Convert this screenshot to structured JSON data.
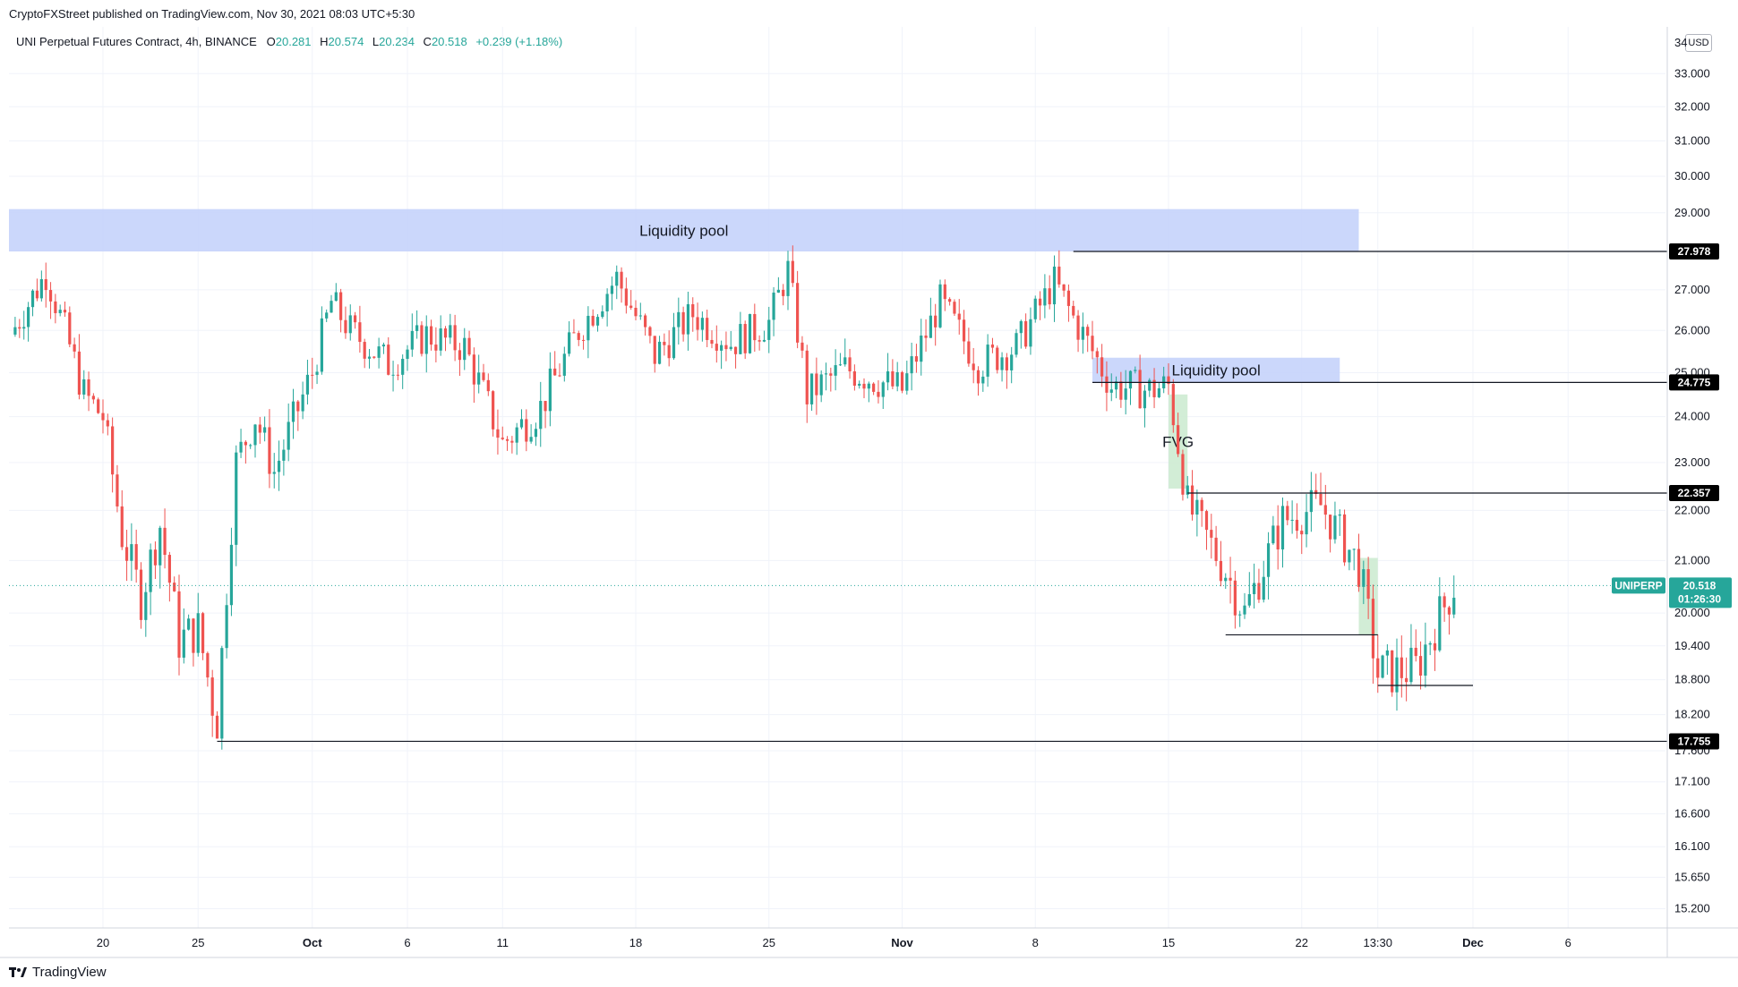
{
  "header": {
    "published": "CryptoFXStreet published on TradingView.com, Nov 30, 2021 08:03 UTC+5:30"
  },
  "legend": {
    "symbol": "UNI Perpetual Futures Contract, 4h, BINANCE",
    "o_label": "O",
    "o": "20.281",
    "h_label": "H",
    "h": "20.574",
    "l_label": "L",
    "l": "20.234",
    "c_label": "C",
    "c": "20.518",
    "change": "+0.239 (+1.18%)"
  },
  "currency": "USD",
  "footer": {
    "brand": "TradingView"
  },
  "colors": {
    "up": "#26a69a",
    "down": "#ef5350",
    "zone_blue": "#c5d3fb",
    "zone_green": "#cdebd1",
    "tag": "#000000"
  },
  "chart_data": {
    "type": "candlestick",
    "symbol": "UNIPERP",
    "timeframe": "4h",
    "y_axis": {
      "scale": "log",
      "ticks": [
        "33.000",
        "32.000",
        "31.000",
        "30.000",
        "29.000",
        "28.000",
        "27.000",
        "26.000",
        "25.000",
        "24.000",
        "23.000",
        "22.000",
        "21.000",
        "20.000",
        "19.400",
        "18.800",
        "18.200",
        "17.600",
        "17.100",
        "16.600",
        "16.100",
        "15.650",
        "15.200"
      ],
      "top_cut_label": "34"
    },
    "x_axis": {
      "ticks": [
        "20",
        "25",
        "Oct",
        "6",
        "11",
        "18",
        "25",
        "Nov",
        "8",
        "15",
        "22",
        "13:30",
        "Dec",
        "6"
      ]
    },
    "close_series_approx": [
      {
        "t": "Sep 16",
        "v": 25.9
      },
      {
        "t": "Sep 17",
        "v": 27.4
      },
      {
        "t": "Sep 18",
        "v": 26.0
      },
      {
        "t": "Sep 19",
        "v": 24.5
      },
      {
        "t": "Sep 20",
        "v": 24.0
      },
      {
        "t": "Sep 21",
        "v": 21.5
      },
      {
        "t": "Sep 22",
        "v": 20.3
      },
      {
        "t": "Sep 23",
        "v": 21.7
      },
      {
        "t": "Sep 24",
        "v": 19.5
      },
      {
        "t": "Sep 25",
        "v": 19.7
      },
      {
        "t": "Sep 26",
        "v": 18.0
      },
      {
        "t": "Sep 27",
        "v": 23.0
      },
      {
        "t": "Sep 28",
        "v": 24.0
      },
      {
        "t": "Sep 29",
        "v": 22.8
      },
      {
        "t": "Oct 1",
        "v": 25.0
      },
      {
        "t": "Oct 2",
        "v": 26.7
      },
      {
        "t": "Oct 3",
        "v": 26.0
      },
      {
        "t": "Oct 5",
        "v": 25.2
      },
      {
        "t": "Oct 7",
        "v": 25.9
      },
      {
        "t": "Oct 9",
        "v": 25.6
      },
      {
        "t": "Oct 10",
        "v": 24.5
      },
      {
        "t": "Oct 11",
        "v": 23.4
      },
      {
        "t": "Oct 13",
        "v": 24.2
      },
      {
        "t": "Oct 15",
        "v": 26.0
      },
      {
        "t": "Oct 17",
        "v": 27.3
      },
      {
        "t": "Oct 19",
        "v": 25.4
      },
      {
        "t": "Oct 21",
        "v": 26.4
      },
      {
        "t": "Oct 23",
        "v": 25.7
      },
      {
        "t": "Oct 25",
        "v": 26.2
      },
      {
        "t": "Oct 26",
        "v": 27.5
      },
      {
        "t": "Oct 27",
        "v": 24.5
      },
      {
        "t": "Oct 29",
        "v": 25.1
      },
      {
        "t": "Nov 1",
        "v": 24.6
      },
      {
        "t": "Nov 3",
        "v": 26.7
      },
      {
        "t": "Nov 5",
        "v": 25.2
      },
      {
        "t": "Nov 7",
        "v": 25.6
      },
      {
        "t": "Nov 9",
        "v": 27.2
      },
      {
        "t": "Nov 10",
        "v": 26.3
      },
      {
        "t": "Nov 12",
        "v": 24.7
      },
      {
        "t": "Nov 14",
        "v": 24.6
      },
      {
        "t": "Nov 15",
        "v": 24.7
      },
      {
        "t": "Nov 16",
        "v": 22.1
      },
      {
        "t": "Nov 18",
        "v": 20.8
      },
      {
        "t": "Nov 19",
        "v": 20.0
      },
      {
        "t": "Nov 21",
        "v": 21.8
      },
      {
        "t": "Nov 23",
        "v": 22.1
      },
      {
        "t": "Nov 25",
        "v": 20.9
      },
      {
        "t": "Nov 26",
        "v": 18.9
      },
      {
        "t": "Nov 28",
        "v": 19.0
      },
      {
        "t": "Nov 30",
        "v": 20.518
      }
    ],
    "annotations": {
      "zones": [
        {
          "label": "Liquidity pool",
          "color": "blue",
          "from": "Sep 14",
          "to": "Nov 25",
          "low": 27.978,
          "high": 29.1
        },
        {
          "label": "Liquidity pool",
          "color": "blue",
          "from": "Nov 11",
          "to": "Nov 24",
          "low": 24.775,
          "high": 25.35
        },
        {
          "label": "FVG",
          "color": "green",
          "from": "Nov 15",
          "to": "Nov 16",
          "low": 22.45,
          "high": 24.5
        },
        {
          "label": "",
          "color": "green",
          "from": "Nov 25",
          "to": "Nov 26",
          "low": 19.6,
          "high": 21.05
        }
      ],
      "levels": [
        {
          "label": "27.978",
          "value": 27.978,
          "from": "Nov 10"
        },
        {
          "label": "24.775",
          "value": 24.775,
          "from": "Nov 11"
        },
        {
          "label": "22.357",
          "value": 22.357,
          "from": "Nov 16"
        },
        {
          "label": "17.755",
          "value": 17.755,
          "from": "Sep 26"
        },
        {
          "label": "",
          "value": 19.6,
          "from": "Nov 18",
          "to": "Nov 26"
        },
        {
          "label": "",
          "value": 18.7,
          "from": "Nov 26",
          "to": "Dec 1"
        }
      ],
      "last_price": {
        "symbol_tag": "UNIPERP",
        "value": "20.518",
        "countdown": "01:26:30"
      }
    }
  }
}
